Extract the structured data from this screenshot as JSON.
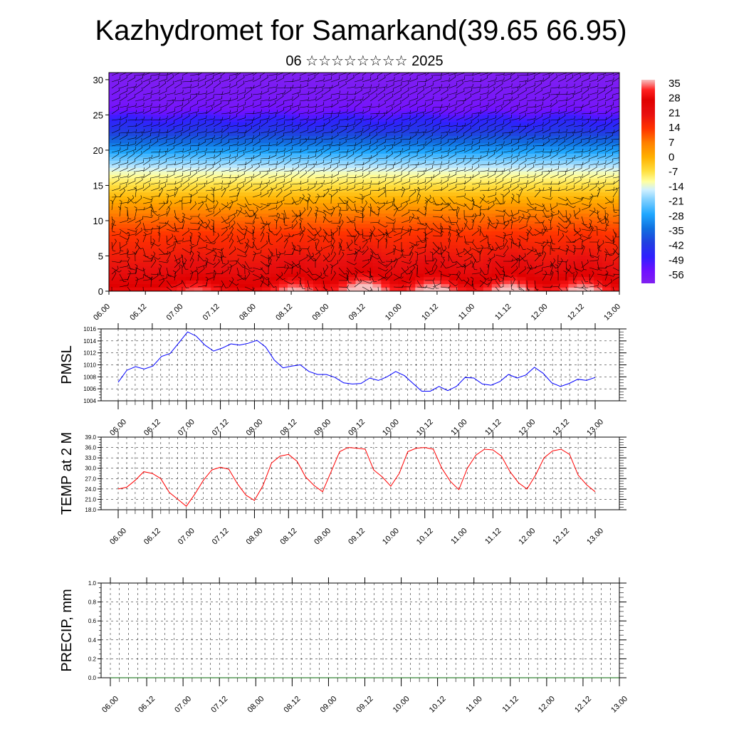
{
  "header": {
    "title": "Kazhydromet for Samarkand(39.65 66.95)",
    "subtitle": "06 ☆☆☆☆☆☆☆☆ 2025"
  },
  "colors": {
    "pmsl_line": "#0000ff",
    "temp_line": "#ff0000",
    "precip_line": "#006400",
    "grid": "#000000",
    "barb": "#000000"
  },
  "chart_data": [
    {
      "type": "heatmap",
      "name": "upper-air-temperature",
      "x_ticks": [
        "06.00",
        "06.12",
        "07.00",
        "07.12",
        "08.00",
        "08.12",
        "09.00",
        "09.12",
        "10.00",
        "10.12",
        "11.00",
        "11.12",
        "12.00",
        "12.12",
        "13.00"
      ],
      "y_ticks": [
        0,
        5,
        10,
        15,
        20,
        25,
        30
      ],
      "ylim": [
        0,
        31
      ],
      "colorbar": {
        "labels": [
          "35",
          "28",
          "21",
          "14",
          "7",
          "0",
          "-7",
          "-14",
          "-21",
          "-28",
          "-35",
          "-42",
          "-49",
          "-56"
        ],
        "stops": [
          {
            "v": 38,
            "c": "#f7c0c0"
          },
          {
            "v": 33,
            "c": "#ff2020"
          },
          {
            "v": 28,
            "c": "#e00000"
          },
          {
            "v": 21,
            "c": "#e81010"
          },
          {
            "v": 14,
            "c": "#ff3300"
          },
          {
            "v": 7,
            "c": "#ff8000"
          },
          {
            "v": 0,
            "c": "#ffb000"
          },
          {
            "v": -7,
            "c": "#ffe040"
          },
          {
            "v": -12,
            "c": "#ffffa0"
          },
          {
            "v": -16,
            "c": "#d0f0ff"
          },
          {
            "v": -21,
            "c": "#80d0ff"
          },
          {
            "v": -28,
            "c": "#20a8ff"
          },
          {
            "v": -35,
            "c": "#1070e0"
          },
          {
            "v": -42,
            "c": "#2040e0"
          },
          {
            "v": -49,
            "c": "#3020ff"
          },
          {
            "v": -56,
            "c": "#7010ff"
          },
          {
            "v": -62,
            "c": "#8020f0"
          }
        ]
      },
      "profile": [
        {
          "z": 0,
          "t": 30
        },
        {
          "z": 3,
          "t": 21
        },
        {
          "z": 8,
          "t": 14
        },
        {
          "z": 11,
          "t": 7
        },
        {
          "z": 13,
          "t": 0
        },
        {
          "z": 15,
          "t": -7
        },
        {
          "z": 17,
          "t": -14
        },
        {
          "z": 19,
          "t": -24
        },
        {
          "z": 21,
          "t": -35
        },
        {
          "z": 23,
          "t": -45
        },
        {
          "z": 24.5,
          "t": -50
        },
        {
          "z": 26,
          "t": -58
        },
        {
          "z": 31,
          "t": -62
        }
      ],
      "warm_cells": [
        {
          "x": 1.2,
          "amp": 6
        },
        {
          "x": 2.55,
          "amp": 9
        },
        {
          "x": 3.5,
          "amp": 15
        },
        {
          "x": 4.45,
          "amp": 12
        },
        {
          "x": 5.5,
          "amp": 12
        },
        {
          "x": 6.5,
          "amp": 11
        }
      ],
      "grid": false
    },
    {
      "type": "line",
      "name": "PMSL",
      "ylabel": "PMSL",
      "ylim": [
        1004,
        1016
      ],
      "y_ticks": [
        1004,
        1006,
        1008,
        1010,
        1012,
        1014,
        1016
      ],
      "x_ticks": [
        "06.00",
        "06.12",
        "07.00",
        "07.12",
        "08.00",
        "08.12",
        "09.00",
        "09.12",
        "10.00",
        "10.12",
        "11.00",
        "11.12",
        "12.00",
        "12.12",
        "13.00"
      ],
      "grid": true,
      "series": [
        {
          "values": [
            1007.1,
            1009.1,
            1009.7,
            1009.3,
            1009.8,
            1011.4,
            1011.9,
            1013.7,
            1015.5,
            1014.8,
            1013.3,
            1012.3,
            1012.8,
            1013.5,
            1013.3,
            1013.6,
            1014.1,
            1013.0,
            1010.8,
            1009.5,
            1009.8,
            1010.0,
            1008.9,
            1008.4,
            1008.4,
            1007.9,
            1007.0,
            1006.8,
            1006.9,
            1007.8,
            1007.4,
            1008.0,
            1008.9,
            1008.2,
            1006.9,
            1005.6,
            1005.6,
            1006.4,
            1005.7,
            1006.4,
            1007.9,
            1007.8,
            1006.8,
            1006.6,
            1007.2,
            1008.4,
            1007.8,
            1008.3,
            1009.6,
            1008.6,
            1007.0,
            1006.4,
            1006.9,
            1007.6,
            1007.4,
            1007.9
          ]
        }
      ]
    },
    {
      "type": "line",
      "name": "TEMP",
      "ylabel": "TEMP at 2 M",
      "ylim": [
        18.0,
        39.0
      ],
      "y_ticks": [
        "18.0",
        "21.0",
        "24.0",
        "27.0",
        "30.0",
        "33.0",
        "36.0",
        "39.0"
      ],
      "x_ticks": [
        "06.00",
        "06.12",
        "07.00",
        "07.12",
        "08.00",
        "08.12",
        "09.00",
        "09.12",
        "10.00",
        "10.12",
        "11.00",
        "11.12",
        "12.00",
        "12.12",
        "13.00"
      ],
      "grid": true,
      "series": [
        {
          "values": [
            24.0,
            24.5,
            26.5,
            29.0,
            28.5,
            27.0,
            23.0,
            21.0,
            19.0,
            22.5,
            26.5,
            29.5,
            30.3,
            29.7,
            25.5,
            22.2,
            20.7,
            25.0,
            31.5,
            33.5,
            34.0,
            32.0,
            27.5,
            25.0,
            23.2,
            29.0,
            34.8,
            36.0,
            35.8,
            35.5,
            29.5,
            27.5,
            24.8,
            28.5,
            34.8,
            35.8,
            36.0,
            35.5,
            30.0,
            26.2,
            23.8,
            30.0,
            33.8,
            35.5,
            35.3,
            33.5,
            29.0,
            25.8,
            24.0,
            28.0,
            33.0,
            35.0,
            35.5,
            34.0,
            28.0,
            25.2,
            23.2
          ]
        }
      ]
    },
    {
      "type": "line",
      "name": "PRECIP",
      "ylabel": "PRECIP, mm",
      "ylim": [
        0.0,
        1.0
      ],
      "y_ticks": [
        "0.0",
        "0.2",
        "0.4",
        "0.6",
        "0.8",
        "1.0"
      ],
      "x_ticks": [
        "06.00",
        "06.12",
        "07.00",
        "07.12",
        "08.00",
        "08.12",
        "09.00",
        "09.12",
        "10.00",
        "10.12",
        "11.00",
        "11.12",
        "12.00",
        "12.12",
        "13.00"
      ],
      "grid": true,
      "series": [
        {
          "values": [
            0,
            0,
            0,
            0,
            0,
            0,
            0,
            0,
            0,
            0,
            0,
            0,
            0,
            0,
            0
          ]
        }
      ]
    }
  ]
}
